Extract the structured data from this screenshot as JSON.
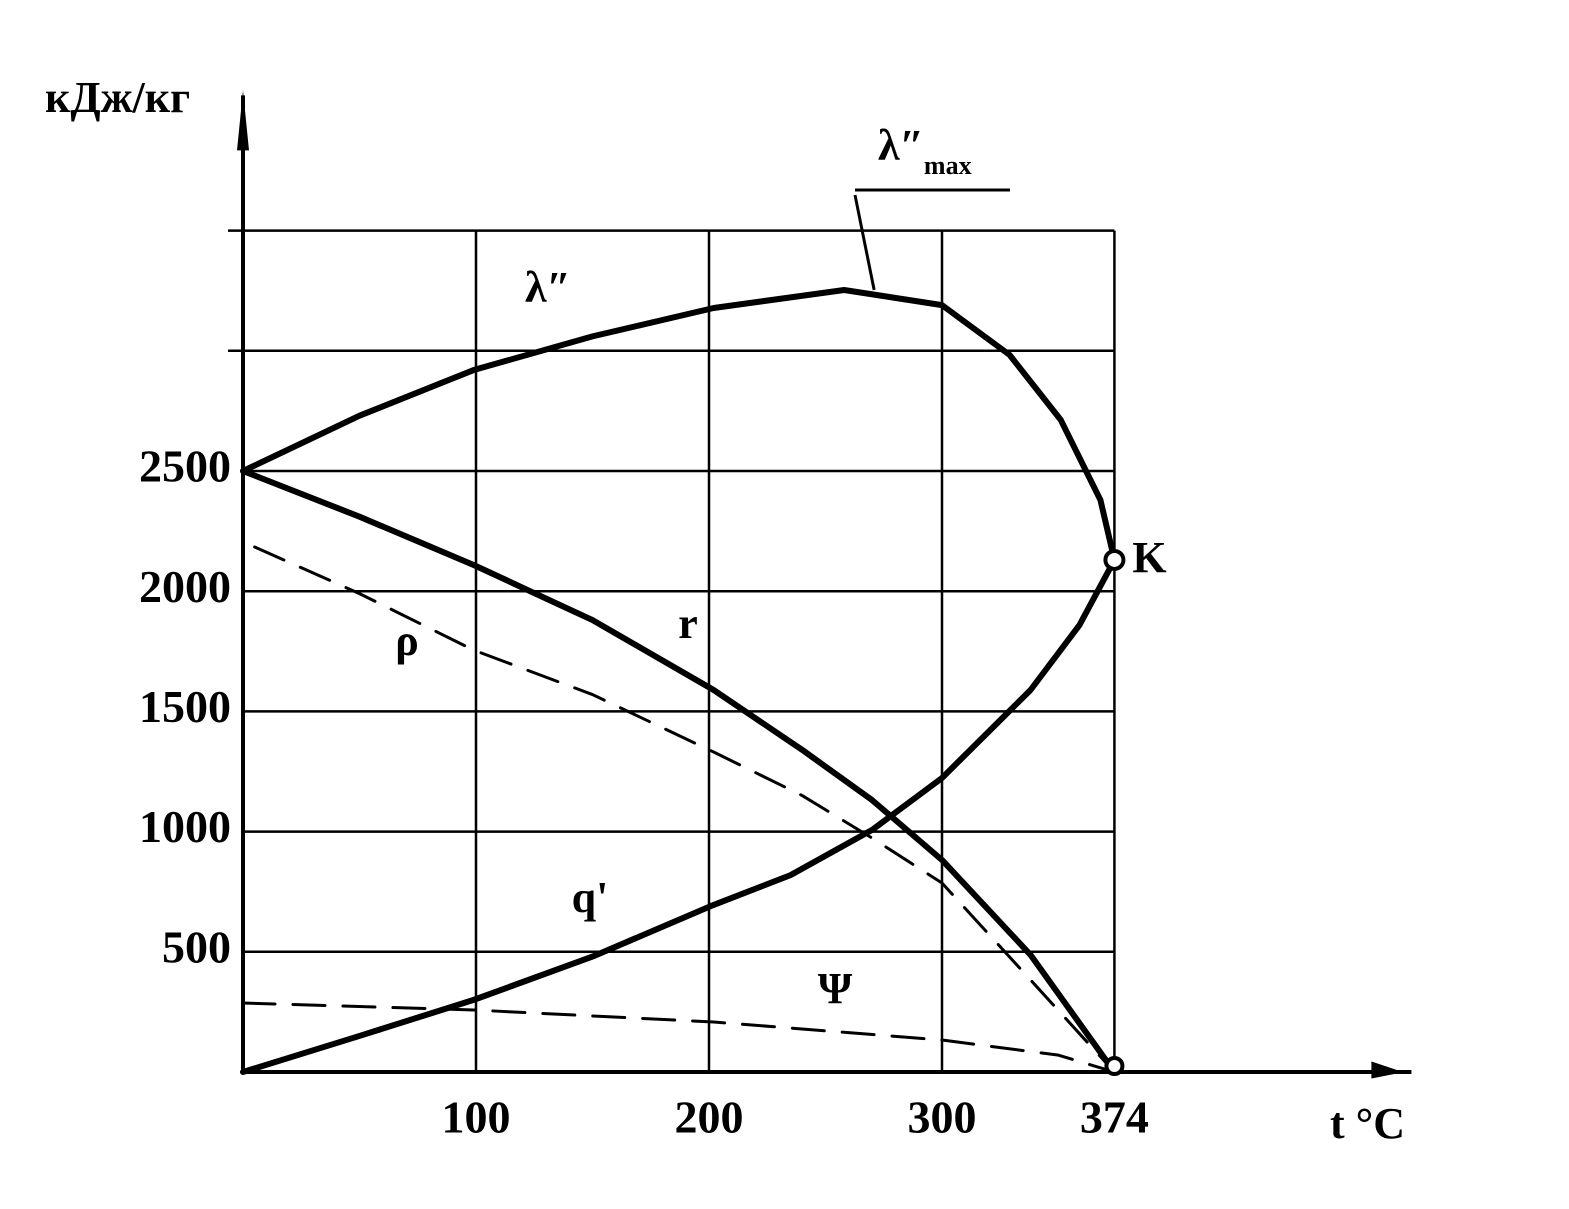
{
  "chart_data": {
    "type": "line",
    "y_label": "кДж/кг",
    "x_label": "t °C",
    "xlim": [
      0,
      480
    ],
    "ylim": [
      0,
      4000
    ],
    "xticks": [
      100,
      200,
      300,
      374
    ],
    "yticks": [
      500,
      1000,
      1500,
      2000,
      2500,
      {
        "value": 3000,
        "label": null
      },
      {
        "value": 3500,
        "label": null
      }
    ],
    "grid": true,
    "series": [
      {
        "name": "λ″",
        "color": "#000000",
        "dash": false,
        "x": [
          0,
          50,
          99,
          150,
          202,
          258,
          300,
          329,
          351,
          368,
          374
        ],
        "values": [
          2500,
          2730,
          2920,
          3060,
          3178,
          3253,
          3190,
          2983,
          2712,
          2379,
          2130
        ]
      },
      {
        "name": "r",
        "color": "#000000",
        "dash": false,
        "x": [
          0,
          50,
          99,
          150,
          202,
          240,
          270,
          300,
          338,
          374
        ],
        "values": [
          2500,
          2310,
          2109,
          1880,
          1589,
          1340,
          1131,
          882,
          487,
          0
        ]
      },
      {
        "name": "q'",
        "color": "#000000",
        "dash": false,
        "x": [
          0,
          50,
          99,
          150,
          202,
          235,
          270,
          300,
          338,
          359,
          374
        ],
        "values": [
          0,
          150,
          300,
          480,
          695,
          819,
          1007,
          1223,
          1589,
          1859,
          2130
        ]
      },
      {
        "name": "ρ",
        "color": "#000000",
        "dash": true,
        "x": [
          5,
          50,
          99,
          150,
          202,
          240,
          270,
          300,
          338,
          374
        ],
        "values": [
          2184,
          1990,
          1755,
          1570,
          1331,
          1150,
          973,
          786,
          383,
          0
        ]
      },
      {
        "name": "Ψ",
        "color": "#000000",
        "dash": true,
        "x": [
          0,
          99,
          202,
          300,
          350,
          374
        ],
        "values": [
          287,
          258,
          208,
          133,
          70,
          0
        ]
      }
    ],
    "annotations": [
      {
        "text": "λ″",
        "sub": "max",
        "x": 258,
        "y": 3253
      },
      {
        "text": "K",
        "x": 374,
        "y": 2130
      }
    ],
    "end_point": {
      "x": 374,
      "y": 0
    }
  }
}
